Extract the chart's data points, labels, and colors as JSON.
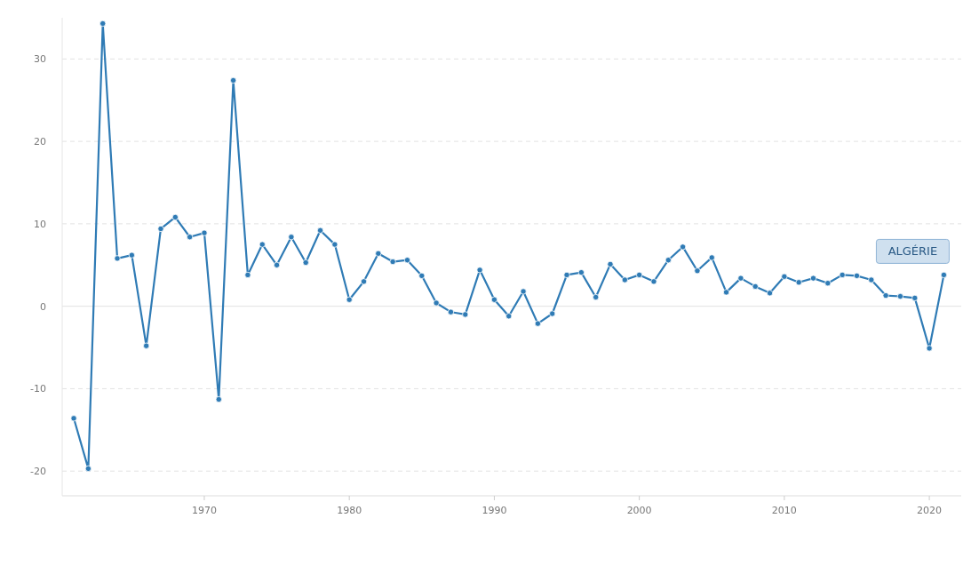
{
  "chart_data": {
    "type": "line",
    "x": [
      1961,
      1962,
      1963,
      1964,
      1965,
      1966,
      1967,
      1968,
      1969,
      1970,
      1971,
      1972,
      1973,
      1974,
      1975,
      1976,
      1977,
      1978,
      1979,
      1980,
      1981,
      1982,
      1983,
      1984,
      1985,
      1986,
      1987,
      1988,
      1989,
      1990,
      1991,
      1992,
      1993,
      1994,
      1995,
      1996,
      1997,
      1998,
      1999,
      2000,
      2001,
      2002,
      2003,
      2004,
      2005,
      2006,
      2007,
      2008,
      2009,
      2010,
      2011,
      2012,
      2013,
      2014,
      2015,
      2016,
      2017,
      2018,
      2019,
      2020,
      2021
    ],
    "series": [
      {
        "name": "ALGÉRIE",
        "color": "#2f7bb5",
        "values": [
          -13.6,
          -19.7,
          34.3,
          5.8,
          6.2,
          -4.8,
          9.4,
          10.8,
          8.4,
          8.9,
          -11.3,
          27.4,
          3.8,
          7.5,
          5.0,
          8.4,
          5.3,
          9.2,
          7.5,
          0.8,
          3.0,
          6.4,
          5.4,
          5.6,
          3.7,
          0.4,
          -0.7,
          -1.0,
          4.4,
          0.8,
          -1.2,
          1.8,
          -2.1,
          -0.9,
          3.8,
          4.1,
          1.1,
          5.1,
          3.2,
          3.8,
          3.0,
          5.6,
          7.2,
          4.3,
          5.9,
          1.7,
          3.4,
          2.4,
          1.6,
          3.6,
          2.9,
          3.4,
          2.8,
          3.8,
          3.7,
          3.2,
          1.3,
          1.2,
          1.0,
          -5.1,
          3.8
        ]
      }
    ],
    "xlim": [
      1960.2,
      2022.2
    ],
    "xticks": [
      1970,
      1980,
      1990,
      2000,
      2010,
      2020
    ],
    "ylim": [
      -23,
      35
    ],
    "yticks": [
      -20,
      -10,
      0,
      10,
      20,
      30
    ],
    "grid": "y",
    "marker": "circle",
    "line_style": "solid"
  }
}
